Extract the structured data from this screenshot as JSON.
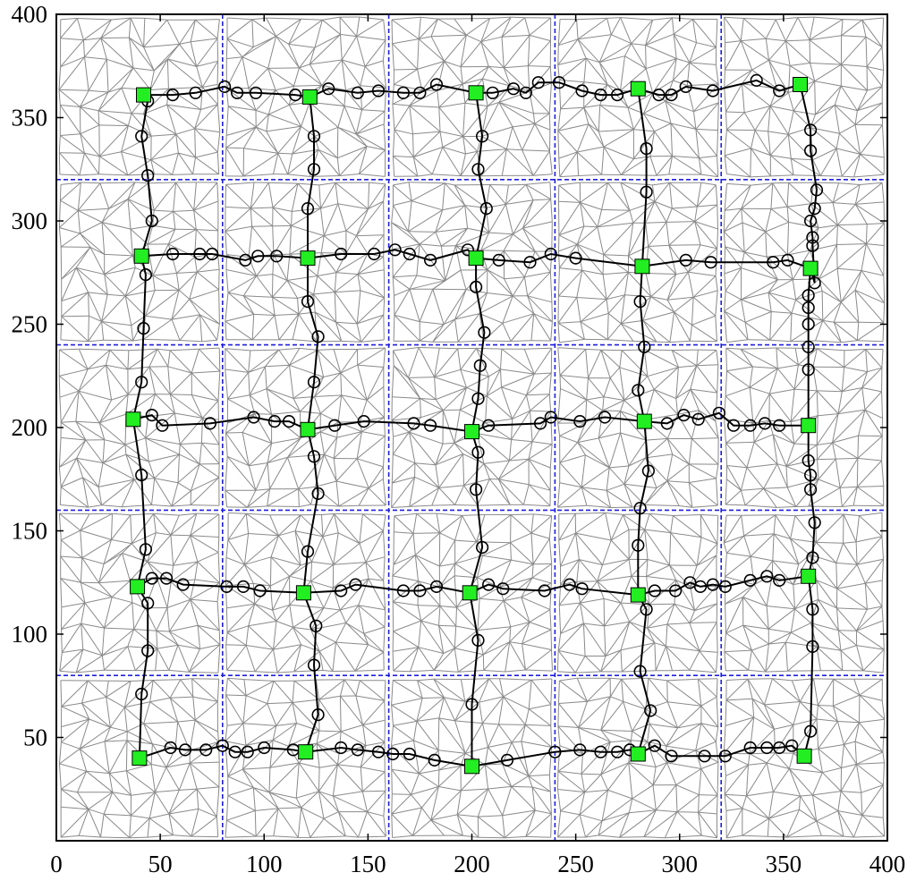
{
  "chart_data": {
    "type": "scatter",
    "title": "",
    "xlabel": "",
    "ylabel": "",
    "xlim": [
      0,
      400
    ],
    "ylim": [
      0,
      400
    ],
    "xticks": [
      0,
      50,
      100,
      150,
      200,
      250,
      300,
      350,
      400
    ],
    "yticks": [
      50,
      100,
      150,
      200,
      250,
      300,
      350,
      400
    ],
    "grid_cell_size": 80,
    "grid_lines": [
      80,
      160,
      240,
      320
    ],
    "colors": {
      "mesh": "#8a8a8a",
      "route": "#000000",
      "cell_head": "#22ee22",
      "grid": "#1f1fe0"
    },
    "cell_heads": [
      [
        40,
        40
      ],
      [
        120,
        43
      ],
      [
        200,
        36
      ],
      [
        280,
        42
      ],
      [
        360,
        41
      ],
      [
        39,
        123
      ],
      [
        119,
        120
      ],
      [
        199,
        120
      ],
      [
        280,
        119
      ],
      [
        362,
        128
      ],
      [
        37,
        204
      ],
      [
        121,
        199
      ],
      [
        200,
        198
      ],
      [
        283,
        203
      ],
      [
        362,
        201
      ],
      [
        41,
        283
      ],
      [
        121,
        282
      ],
      [
        202,
        282
      ],
      [
        282,
        278
      ],
      [
        363,
        277
      ],
      [
        42,
        361
      ],
      [
        122,
        360
      ],
      [
        202,
        362
      ],
      [
        280,
        364
      ],
      [
        358,
        366
      ]
    ],
    "horizontal_routes": [
      [
        [
          40,
          40
        ],
        [
          55,
          45
        ],
        [
          62,
          44
        ],
        [
          72,
          44
        ],
        [
          80,
          46
        ],
        [
          86,
          43
        ],
        [
          92,
          43
        ],
        [
          100,
          45
        ],
        [
          114,
          44
        ],
        [
          120,
          43
        ],
        [
          137,
          45
        ],
        [
          145,
          44
        ],
        [
          155,
          43
        ],
        [
          162,
          42
        ],
        [
          170,
          42
        ],
        [
          182,
          39
        ],
        [
          200,
          36
        ],
        [
          217,
          39
        ],
        [
          240,
          43
        ],
        [
          252,
          44
        ],
        [
          262,
          43
        ],
        [
          270,
          43
        ],
        [
          276,
          44
        ],
        [
          280,
          42
        ],
        [
          288,
          46
        ],
        [
          296,
          41
        ],
        [
          312,
          41
        ],
        [
          322,
          41
        ],
        [
          334,
          45
        ],
        [
          342,
          45
        ],
        [
          348,
          45
        ],
        [
          354,
          46
        ],
        [
          360,
          41
        ]
      ],
      [
        [
          39,
          123
        ],
        [
          46,
          127
        ],
        [
          53,
          127
        ],
        [
          61,
          124
        ],
        [
          82,
          123
        ],
        [
          90,
          123
        ],
        [
          98,
          121
        ],
        [
          119,
          120
        ],
        [
          137,
          121
        ],
        [
          144,
          124
        ],
        [
          167,
          121
        ],
        [
          175,
          121
        ],
        [
          183,
          123
        ],
        [
          199,
          120
        ],
        [
          208,
          124
        ],
        [
          215,
          122
        ],
        [
          235,
          121
        ],
        [
          247,
          124
        ],
        [
          253,
          122
        ],
        [
          280,
          119
        ],
        [
          288,
          121
        ],
        [
          298,
          121
        ],
        [
          305,
          125
        ],
        [
          310,
          123
        ],
        [
          316,
          124
        ],
        [
          322,
          123
        ],
        [
          334,
          126
        ],
        [
          342,
          128
        ],
        [
          348,
          126
        ],
        [
          362,
          128
        ]
      ],
      [
        [
          37,
          204
        ],
        [
          46,
          206
        ],
        [
          51,
          201
        ],
        [
          74,
          202
        ],
        [
          95,
          205
        ],
        [
          105,
          203
        ],
        [
          112,
          203
        ],
        [
          121,
          199
        ],
        [
          134,
          201
        ],
        [
          148,
          203
        ],
        [
          172,
          202
        ],
        [
          180,
          201
        ],
        [
          200,
          198
        ],
        [
          208,
          201
        ],
        [
          233,
          202
        ],
        [
          238,
          205
        ],
        [
          252,
          203
        ],
        [
          264,
          205
        ],
        [
          283,
          203
        ],
        [
          294,
          202
        ],
        [
          302,
          206
        ],
        [
          309,
          204
        ],
        [
          319,
          207
        ],
        [
          326,
          201
        ],
        [
          334,
          201
        ],
        [
          341,
          202
        ],
        [
          348,
          201
        ],
        [
          362,
          201
        ]
      ],
      [
        [
          41,
          283
        ],
        [
          56,
          284
        ],
        [
          69,
          284
        ],
        [
          75,
          284
        ],
        [
          91,
          281
        ],
        [
          97,
          283
        ],
        [
          106,
          283
        ],
        [
          121,
          282
        ],
        [
          137,
          284
        ],
        [
          153,
          284
        ],
        [
          163,
          286
        ],
        [
          170,
          284
        ],
        [
          180,
          281
        ],
        [
          198,
          286
        ],
        [
          202,
          282
        ],
        [
          213,
          281
        ],
        [
          228,
          280
        ],
        [
          238,
          284
        ],
        [
          250,
          282
        ],
        [
          282,
          278
        ],
        [
          303,
          281
        ],
        [
          315,
          280
        ],
        [
          345,
          280
        ],
        [
          352,
          281
        ],
        [
          363,
          277
        ]
      ],
      [
        [
          42,
          361
        ],
        [
          56,
          361
        ],
        [
          67,
          362
        ],
        [
          81,
          365
        ],
        [
          87,
          362
        ],
        [
          96,
          362
        ],
        [
          115,
          361
        ],
        [
          122,
          360
        ],
        [
          131,
          364
        ],
        [
          145,
          362
        ],
        [
          155,
          363
        ],
        [
          167,
          362
        ],
        [
          175,
          362
        ],
        [
          183,
          366
        ],
        [
          202,
          362
        ],
        [
          210,
          362
        ],
        [
          220,
          364
        ],
        [
          226,
          362
        ],
        [
          232,
          367
        ],
        [
          242,
          367
        ],
        [
          253,
          363
        ],
        [
          262,
          361
        ],
        [
          270,
          361
        ],
        [
          280,
          364
        ],
        [
          290,
          361
        ],
        [
          296,
          361
        ],
        [
          303,
          365
        ],
        [
          316,
          363
        ],
        [
          337,
          368
        ],
        [
          348,
          363
        ],
        [
          358,
          366
        ]
      ]
    ],
    "vertical_routes": [
      [
        [
          40,
          40
        ],
        [
          41,
          71
        ],
        [
          44,
          92
        ],
        [
          44,
          115
        ],
        [
          39,
          123
        ],
        [
          43,
          141
        ],
        [
          41,
          177
        ],
        [
          37,
          204
        ],
        [
          41,
          222
        ],
        [
          42,
          248
        ],
        [
          43,
          274
        ],
        [
          41,
          283
        ],
        [
          46,
          300
        ],
        [
          44,
          322
        ],
        [
          41,
          341
        ],
        [
          44,
          358
        ],
        [
          42,
          361
        ]
      ],
      [
        [
          120,
          43
        ],
        [
          126,
          61
        ],
        [
          124,
          85
        ],
        [
          125,
          104
        ],
        [
          119,
          120
        ],
        [
          121,
          140
        ],
        [
          126,
          168
        ],
        [
          124,
          186
        ],
        [
          121,
          199
        ],
        [
          124,
          222
        ],
        [
          126,
          244
        ],
        [
          121,
          261
        ],
        [
          121,
          282
        ],
        [
          121,
          306
        ],
        [
          124,
          325
        ],
        [
          124,
          341
        ],
        [
          122,
          360
        ]
      ],
      [
        [
          200,
          36
        ],
        [
          200,
          66
        ],
        [
          203,
          97
        ],
        [
          199,
          120
        ],
        [
          205,
          142
        ],
        [
          202,
          170
        ],
        [
          203,
          188
        ],
        [
          200,
          198
        ],
        [
          203,
          214
        ],
        [
          204,
          230
        ],
        [
          206,
          246
        ],
        [
          202,
          268
        ],
        [
          202,
          282
        ],
        [
          207,
          306
        ],
        [
          203,
          325
        ],
        [
          205,
          341
        ],
        [
          202,
          362
        ]
      ],
      [
        [
          280,
          42
        ],
        [
          286,
          63
        ],
        [
          281,
          82
        ],
        [
          284,
          112
        ],
        [
          280,
          119
        ],
        [
          280,
          143
        ],
        [
          281,
          161
        ],
        [
          285,
          179
        ],
        [
          283,
          203
        ],
        [
          280,
          218
        ],
        [
          283,
          239
        ],
        [
          281,
          261
        ],
        [
          282,
          278
        ],
        [
          284,
          314
        ],
        [
          284,
          335
        ],
        [
          280,
          364
        ]
      ],
      [
        [
          360,
          41
        ],
        [
          363,
          53
        ],
        [
          364,
          94
        ],
        [
          364,
          112
        ],
        [
          362,
          128
        ],
        [
          364,
          137
        ],
        [
          365,
          154
        ],
        [
          363,
          170
        ],
        [
          363,
          177
        ],
        [
          362,
          184
        ],
        [
          362,
          201
        ],
        [
          362,
          228
        ],
        [
          362,
          239
        ],
        [
          362,
          250
        ],
        [
          362,
          258
        ],
        [
          362,
          264
        ],
        [
          363,
          277
        ],
        [
          365,
          270
        ],
        [
          364,
          288
        ],
        [
          364,
          292
        ],
        [
          363,
          300
        ],
        [
          365,
          306
        ],
        [
          366,
          315
        ],
        [
          363,
          334
        ],
        [
          363,
          344
        ],
        [
          358,
          366
        ]
      ]
    ]
  }
}
